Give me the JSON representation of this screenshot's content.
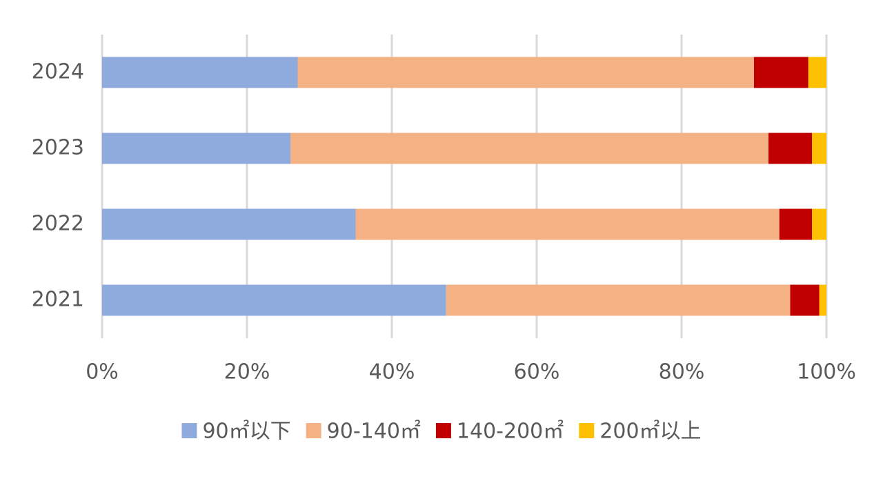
{
  "chart_data": {
    "type": "bar",
    "orientation": "horizontal",
    "stacked": true,
    "categories": [
      "2021",
      "2022",
      "2023",
      "2024"
    ],
    "series": [
      {
        "name": "90㎡以下",
        "color": "#8faadc",
        "values": [
          47.5,
          35,
          26,
          27
        ]
      },
      {
        "name": "90-140㎡",
        "color": "#f4b183",
        "values": [
          47.5,
          58.5,
          66,
          63
        ]
      },
      {
        "name": "140-200㎡",
        "color": "#c00000",
        "values": [
          4,
          4.5,
          6,
          7.5
        ]
      },
      {
        "name": "200㎡以上",
        "color": "#ffc000",
        "values": [
          1,
          2,
          2,
          2.5
        ]
      }
    ],
    "xlim": [
      0,
      100
    ],
    "xticks": [
      {
        "value": 0,
        "label": "0%"
      },
      {
        "value": 20,
        "label": "20%"
      },
      {
        "value": 40,
        "label": "40%"
      },
      {
        "value": 60,
        "label": "60%"
      },
      {
        "value": 80,
        "label": "80%"
      },
      {
        "value": 100,
        "label": "100%"
      }
    ],
    "grid": true,
    "legend": "bottom"
  }
}
